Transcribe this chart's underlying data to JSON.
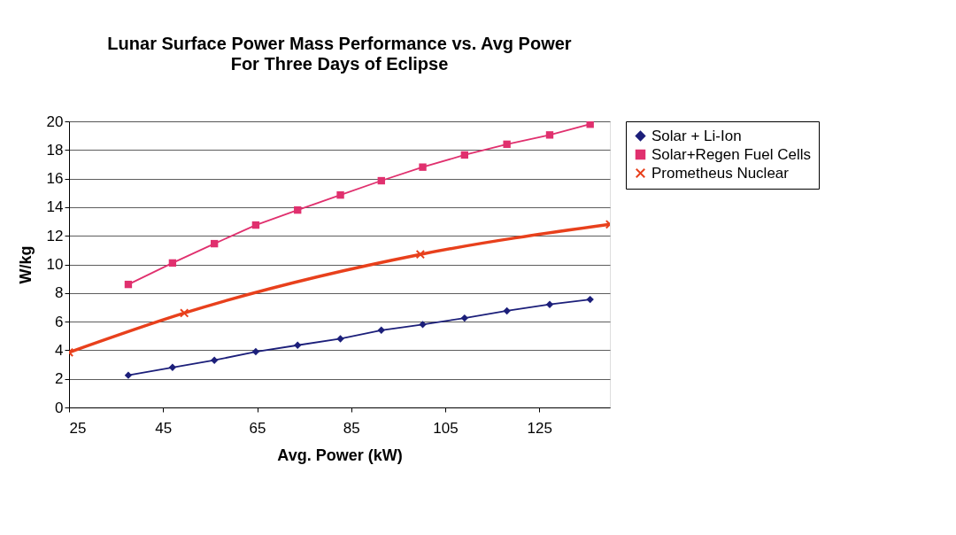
{
  "chart_data": {
    "type": "line",
    "title": "Lunar Surface Power Mass Performance vs. Avg Power",
    "subtitle": "For Three Days of Eclipse",
    "xlabel": "Avg. Power (kW)",
    "ylabel": "W/kg",
    "xlim": [
      25,
      140
    ],
    "xticks": [
      25,
      45,
      65,
      85,
      105,
      125
    ],
    "ylim": [
      0,
      20
    ],
    "yticks": [
      0,
      2,
      4,
      6,
      8,
      10,
      12,
      14,
      16,
      18,
      20
    ],
    "grid": "y",
    "legend": "right",
    "series": [
      {
        "name": "Solar + Li-Ion",
        "color": "#1c1f7a",
        "marker": "diamond",
        "x": [
          37.6,
          47,
          55.9,
          64.7,
          73.6,
          82.7,
          91.4,
          100.2,
          109.1,
          118.1,
          127.2,
          135.8
        ],
        "values": [
          2.25,
          2.8,
          3.3,
          3.9,
          4.35,
          4.8,
          5.4,
          5.8,
          6.25,
          6.75,
          7.2,
          7.55
        ]
      },
      {
        "name": "Solar+Regen Fuel Cells",
        "color": "#e0306e",
        "marker": "square",
        "x": [
          37.6,
          47,
          55.9,
          64.7,
          73.6,
          82.7,
          91.4,
          100.2,
          109.1,
          118.1,
          127.2,
          135.8
        ],
        "values": [
          8.6,
          10.1,
          11.45,
          12.75,
          13.8,
          14.85,
          15.85,
          16.8,
          17.65,
          18.4,
          19.05,
          19.8
        ]
      },
      {
        "name": "Prometheus Nuclear",
        "color": "#e8401c",
        "marker": "cross",
        "x": [
          25,
          49.5,
          99.7,
          140
        ],
        "values": [
          3.85,
          6.6,
          10.7,
          12.8
        ]
      }
    ]
  }
}
